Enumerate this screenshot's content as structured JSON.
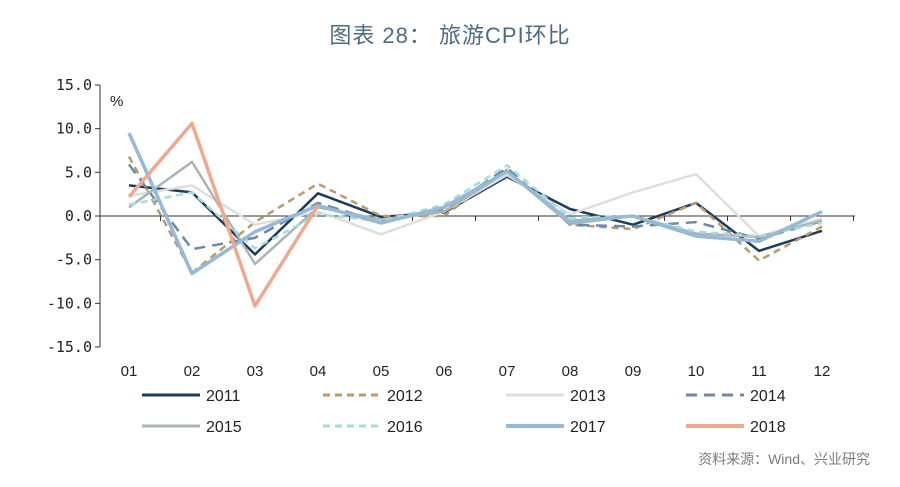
{
  "title": "图表 28：  旅游CPI环比",
  "source": "资料来源：Wind、兴业研究",
  "chart_data": {
    "type": "line",
    "ylabel": "%",
    "ylim": [
      -15,
      15
    ],
    "yticks": [
      "15.0",
      "10.0",
      "5.0",
      "0.0",
      "-5.0",
      "-10.0",
      "-15.0"
    ],
    "ytick_values": [
      15,
      10,
      5,
      0,
      -5,
      -10,
      -15
    ],
    "categories": [
      "01",
      "02",
      "03",
      "04",
      "05",
      "06",
      "07",
      "08",
      "09",
      "10",
      "11",
      "12"
    ],
    "grid": false,
    "legend_position": "bottom",
    "series": [
      {
        "name": "2011",
        "color": "#1f3b5a",
        "dash": "solid",
        "values": [
          3.5,
          2.7,
          -4.4,
          2.6,
          -0.1,
          0.4,
          4.5,
          0.8,
          -1.0,
          1.5,
          -4.0,
          -1.7
        ]
      },
      {
        "name": "2012",
        "color": "#b89a6d",
        "dash": "dash",
        "values": [
          6.8,
          -6.5,
          -0.7,
          3.7,
          0.0,
          0.0,
          5.3,
          -1.0,
          -1.5,
          1.5,
          -5.1,
          -1.2
        ]
      },
      {
        "name": "2013",
        "color": "#dedede",
        "dash": "solid",
        "values": [
          2.3,
          3.5,
          -1.0,
          0.5,
          -2.1,
          0.5,
          4.7,
          0.2,
          2.7,
          4.8,
          -2.3,
          -0.3
        ]
      },
      {
        "name": "2014",
        "color": "#6c8aa4",
        "dash": "longdash",
        "values": [
          5.9,
          -3.8,
          -2.5,
          1.5,
          -0.7,
          0.7,
          5.5,
          -1.0,
          -1.2,
          -0.7,
          -2.6,
          -0.6
        ]
      },
      {
        "name": "2015",
        "color": "#a9b4b3",
        "dash": "solid",
        "values": [
          1.0,
          6.2,
          -5.5,
          1.0,
          -0.4,
          0.5,
          5.1,
          -0.9,
          0.0,
          -2.0,
          -2.4,
          -0.5
        ]
      },
      {
        "name": "2016",
        "color": "#a6dcdc",
        "dash": "dash",
        "values": [
          1.3,
          2.7,
          -3.7,
          0.2,
          -0.6,
          1.3,
          5.8,
          -0.2,
          0.0,
          -1.8,
          -2.3,
          -0.8
        ]
      },
      {
        "name": "2017",
        "color": "#96b9d8",
        "dash": "solid",
        "values": [
          9.5,
          -6.6,
          -1.8,
          1.2,
          -0.8,
          1.0,
          5.1,
          -0.6,
          0.0,
          -2.3,
          -2.9,
          0.5
        ]
      },
      {
        "name": "2018",
        "color": "#f0a991",
        "dash": "solid",
        "values": [
          2.2,
          10.6,
          -10.3,
          1.2,
          null,
          null,
          null,
          null,
          null,
          null,
          null,
          null
        ]
      }
    ]
  }
}
